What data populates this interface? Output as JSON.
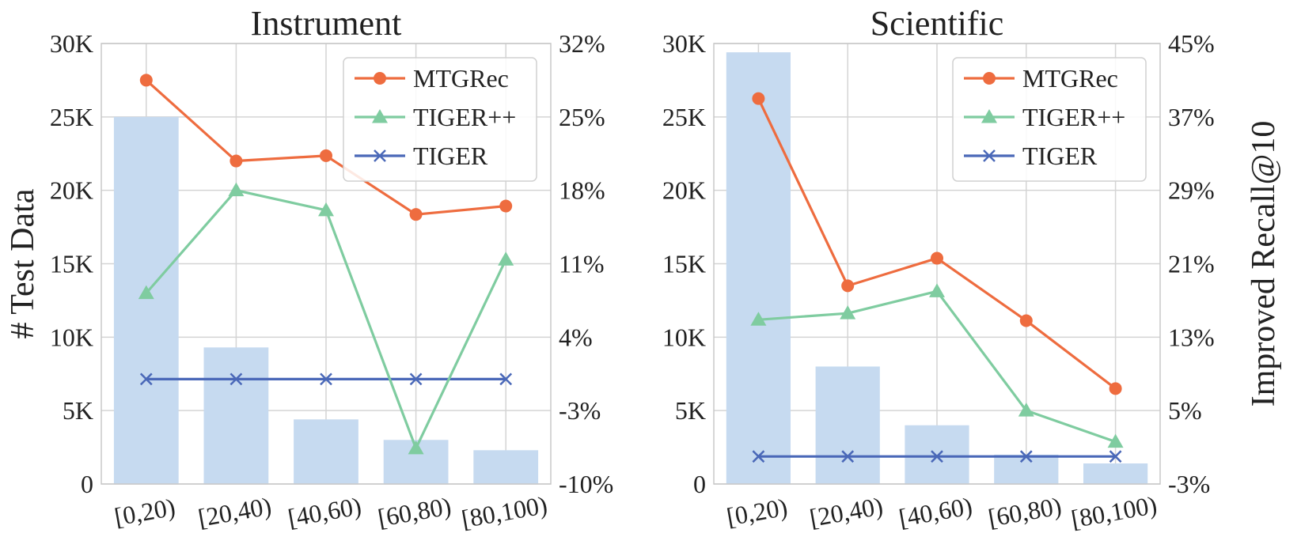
{
  "chart_data": [
    {
      "type": "bar+line",
      "title": "Instrument",
      "categories": [
        "[0,20)",
        "[20,40)",
        "[40,60)",
        "[60,80)",
        "[80,100)"
      ],
      "bars": {
        "name": "# Test Data",
        "values": [
          25000,
          9300,
          4400,
          3000,
          2300
        ],
        "ylim": [
          0,
          30000
        ],
        "yticks": [
          "0",
          "5K",
          "10K",
          "15K",
          "20K",
          "25K",
          "30K"
        ]
      },
      "ylabel": "# Test Data",
      "y2label": "",
      "y2lim": [
        -10,
        32
      ],
      "y2ticks": [
        "-10%",
        "-3%",
        "4%",
        "11%",
        "18%",
        "25%",
        "32%"
      ],
      "series": [
        {
          "name": "MTGRec",
          "values": [
            28.5,
            20.8,
            21.3,
            15.7,
            16.5
          ],
          "color": "#ee6c3f",
          "marker": "circle"
        },
        {
          "name": "TIGER++",
          "values": [
            8.2,
            18.0,
            16.1,
            -6.6,
            11.4
          ],
          "color": "#7fcca0",
          "marker": "triangle"
        },
        {
          "name": "TIGER",
          "values": [
            0,
            0,
            0,
            0,
            0
          ],
          "color": "#4a68b8",
          "marker": "x"
        }
      ],
      "legend_position": "top-right"
    },
    {
      "type": "bar+line",
      "title": "Scientific",
      "categories": [
        "[0,20)",
        "[20,40)",
        "[40,60)",
        "[60,80)",
        "[80,100)"
      ],
      "bars": {
        "name": "# Test Data",
        "values": [
          29400,
          8000,
          4000,
          2000,
          1400
        ],
        "ylim": [
          0,
          30000
        ],
        "yticks": [
          "0",
          "5K",
          "10K",
          "15K",
          "20K",
          "25K",
          "30K"
        ]
      },
      "ylabel": "",
      "y2label": "Improved Recall@10",
      "y2lim": [
        -3,
        45
      ],
      "y2ticks": [
        "-3%",
        "5%",
        "13%",
        "21%",
        "29%",
        "37%",
        "45%"
      ],
      "series": [
        {
          "name": "MTGRec",
          "values": [
            39.0,
            18.6,
            21.6,
            14.8,
            7.4
          ],
          "color": "#ee6c3f",
          "marker": "circle"
        },
        {
          "name": "TIGER++",
          "values": [
            14.9,
            15.6,
            18.0,
            5.0,
            1.6
          ],
          "color": "#7fcca0",
          "marker": "triangle"
        },
        {
          "name": "TIGER",
          "values": [
            0,
            0,
            0,
            0,
            0
          ],
          "color": "#4a68b8",
          "marker": "x"
        }
      ],
      "legend_position": "top-right"
    }
  ],
  "colors": {
    "bar": "#c6daf0",
    "grid": "#d4d4d4"
  }
}
